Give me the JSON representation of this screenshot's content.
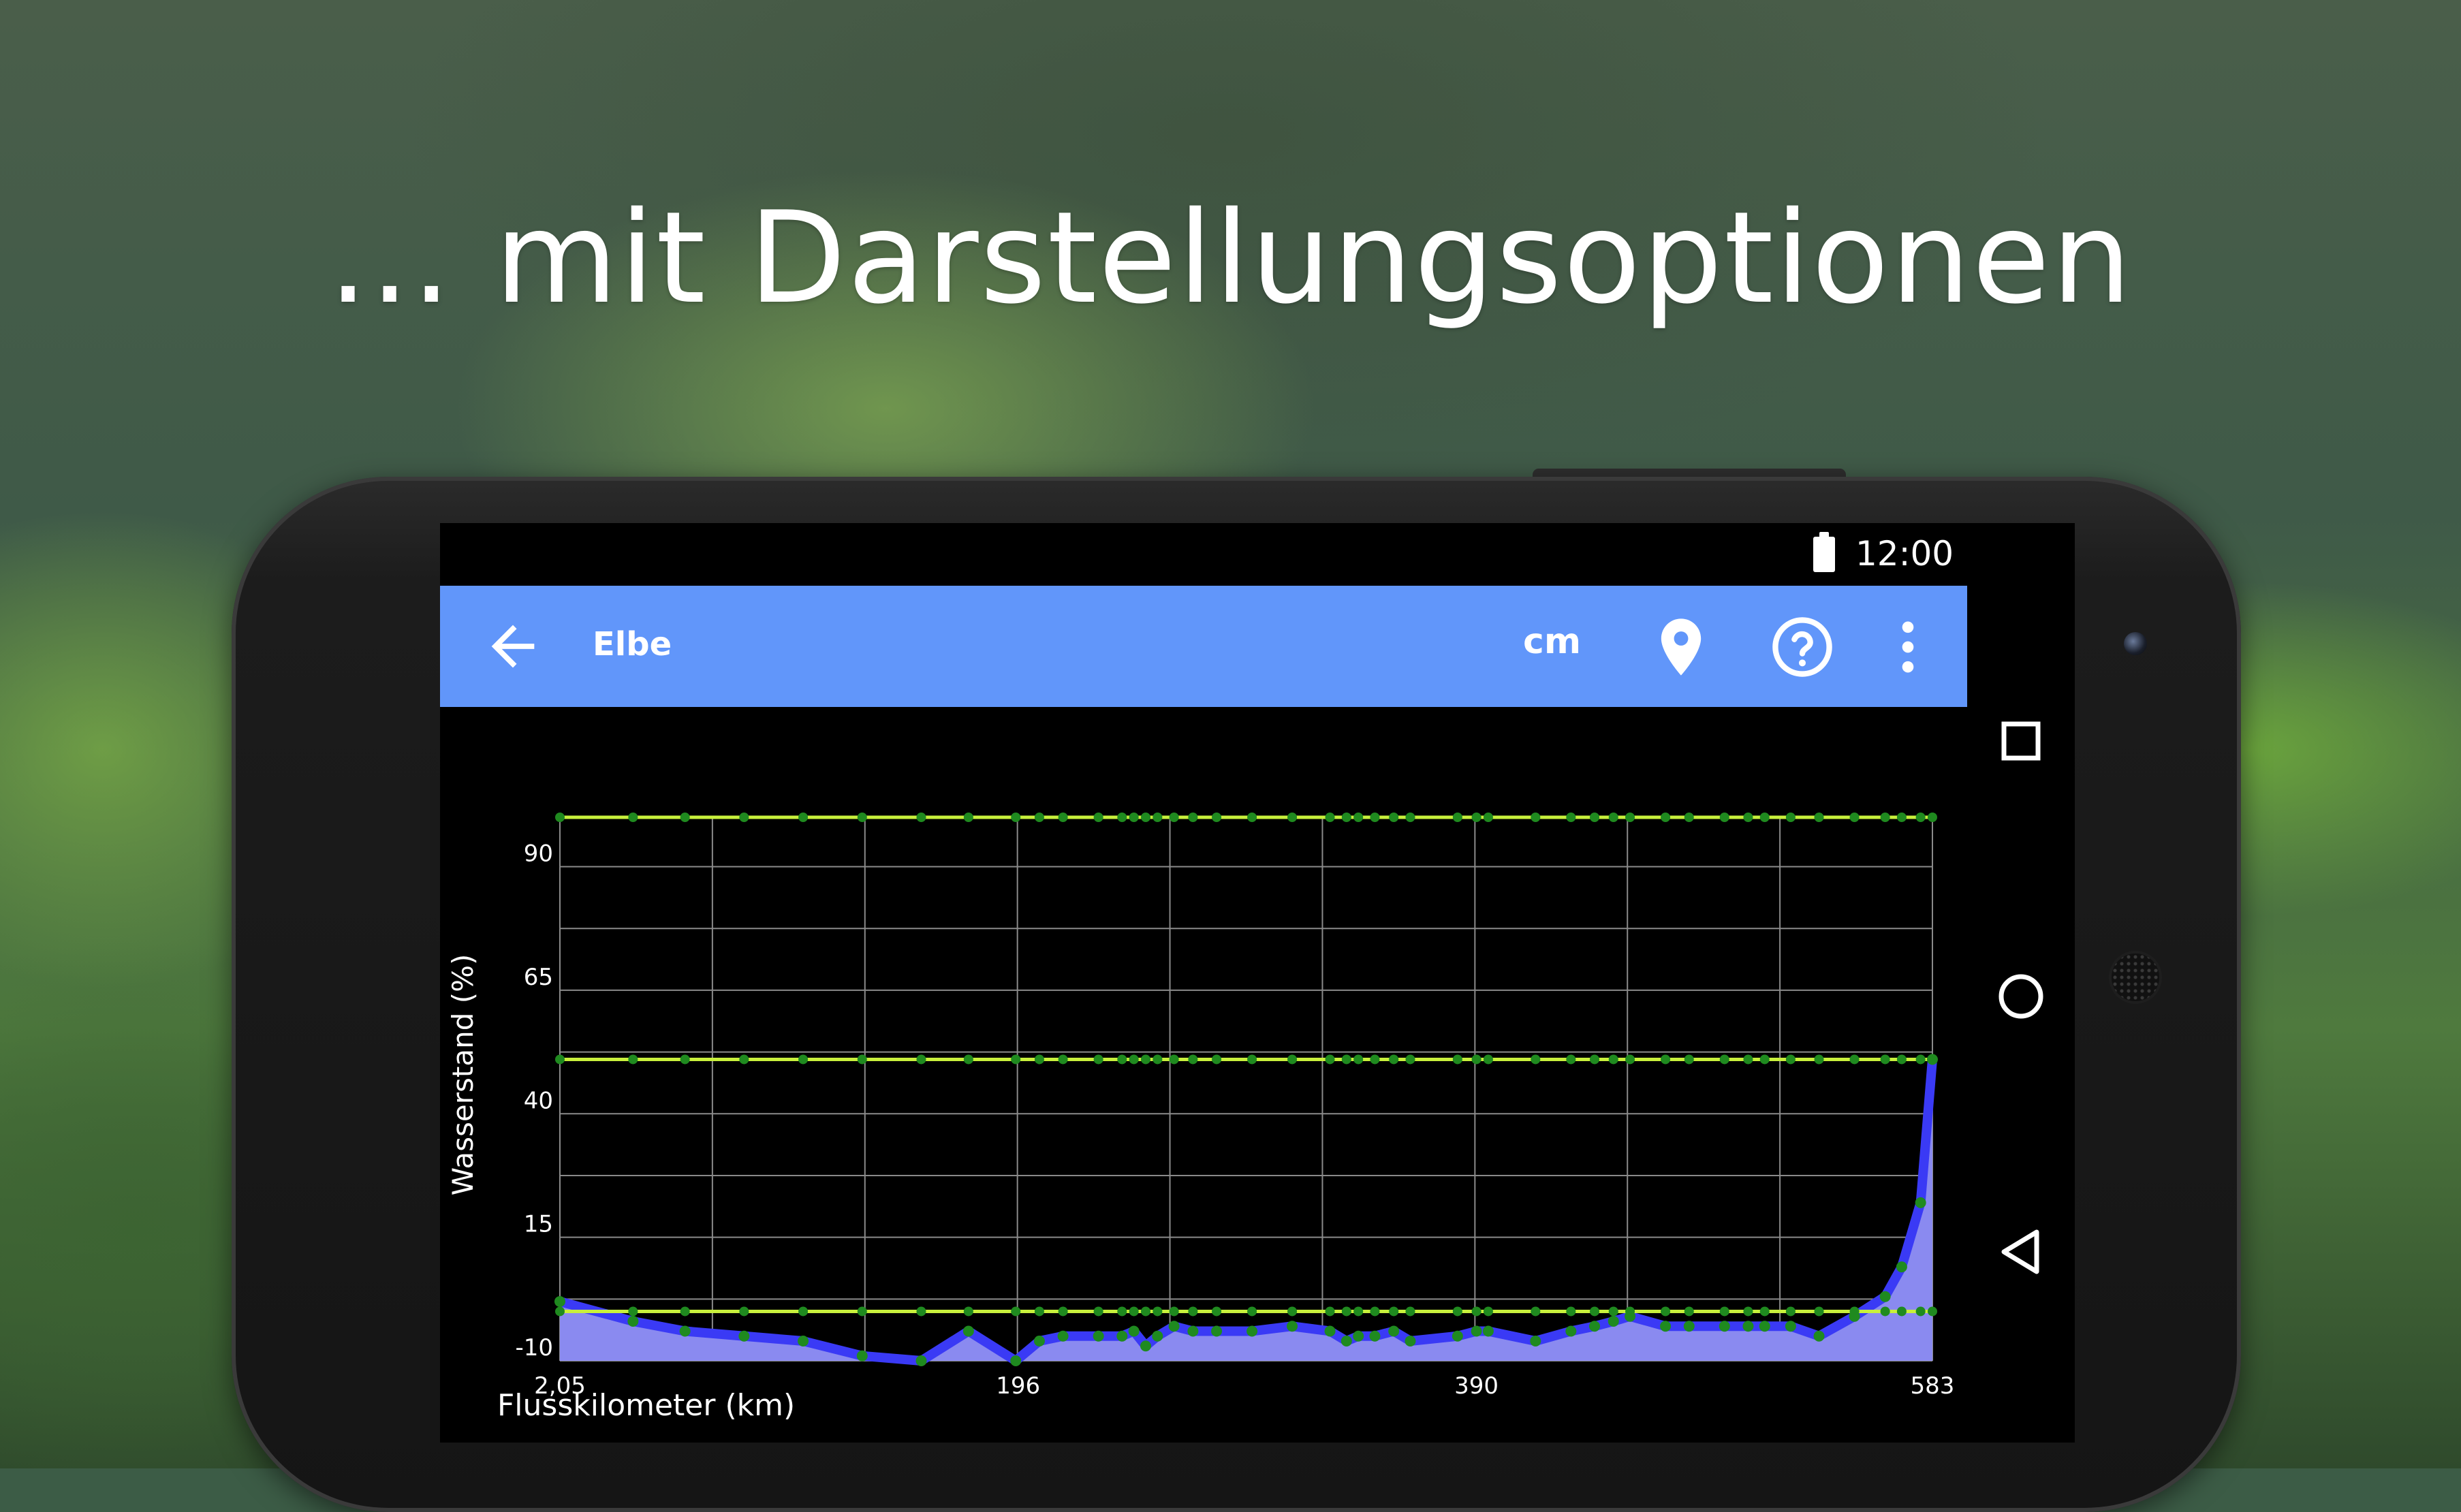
{
  "headline": "... mit Darstellungsoptionen",
  "statusbar": {
    "time": "12:00",
    "battery_icon": "battery-full-icon"
  },
  "appbar": {
    "back_icon": "arrow-back-icon",
    "title": "Elbe",
    "unit_label": "cm",
    "location_icon": "map-pin-icon",
    "help_icon": "help-circle-icon",
    "more_icon": "more-vert-icon",
    "color": "#6196fa"
  },
  "navbar": {
    "recents_icon": "square-icon",
    "home_icon": "circle-icon",
    "back_icon": "triangle-back-icon"
  },
  "chart_data": {
    "type": "area",
    "xlabel": "Flusskilometer (km)",
    "ylabel": "Wasserstand (%)",
    "xlim": [
      2.05,
      583
    ],
    "ylim": [
      -10,
      100
    ],
    "xtick_values": [
      2.05,
      196,
      390,
      583
    ],
    "xtick_labels": [
      "2,05",
      "196",
      "390",
      "583"
    ],
    "ytick_values": [
      -10,
      15,
      40,
      65,
      90
    ],
    "ytick_labels": [
      "-10",
      "15",
      "40",
      "65",
      "90"
    ],
    "grid": true,
    "colors": {
      "area": "#3a3af5",
      "area_fill": "#8a8af0",
      "reference": "#c8f03c",
      "points": "#1f8a1f",
      "grid": "#8a8a8a"
    },
    "series": [
      {
        "x": [
          2.05,
          33,
          55,
          80,
          105,
          130,
          155,
          175,
          195,
          205,
          215,
          230,
          240,
          245,
          250,
          255,
          262,
          270,
          280,
          295,
          312,
          328,
          335,
          340,
          347,
          355,
          362,
          382,
          390,
          395,
          415,
          430,
          440,
          448,
          455,
          470,
          480,
          495,
          505,
          512,
          523,
          535,
          550,
          563,
          570,
          578,
          583
        ],
        "y": [
          2,
          -2,
          -4,
          -5,
          -6,
          -9,
          -10,
          -4,
          -10,
          -6,
          -5,
          -5,
          -5,
          -4,
          -7,
          -5,
          -3,
          -4,
          -4,
          -4,
          -3,
          -4,
          -6,
          -5,
          -5,
          -4,
          -6,
          -5,
          -4,
          -4,
          -6,
          -4,
          -3,
          -2,
          -1,
          -3,
          -3,
          -3,
          -3,
          -3,
          -3,
          -5,
          -1,
          3,
          9,
          22,
          51
        ]
      }
    ],
    "reference_lines": [
      {
        "y": 100
      },
      {
        "y": 51
      },
      {
        "y": 0
      }
    ]
  }
}
